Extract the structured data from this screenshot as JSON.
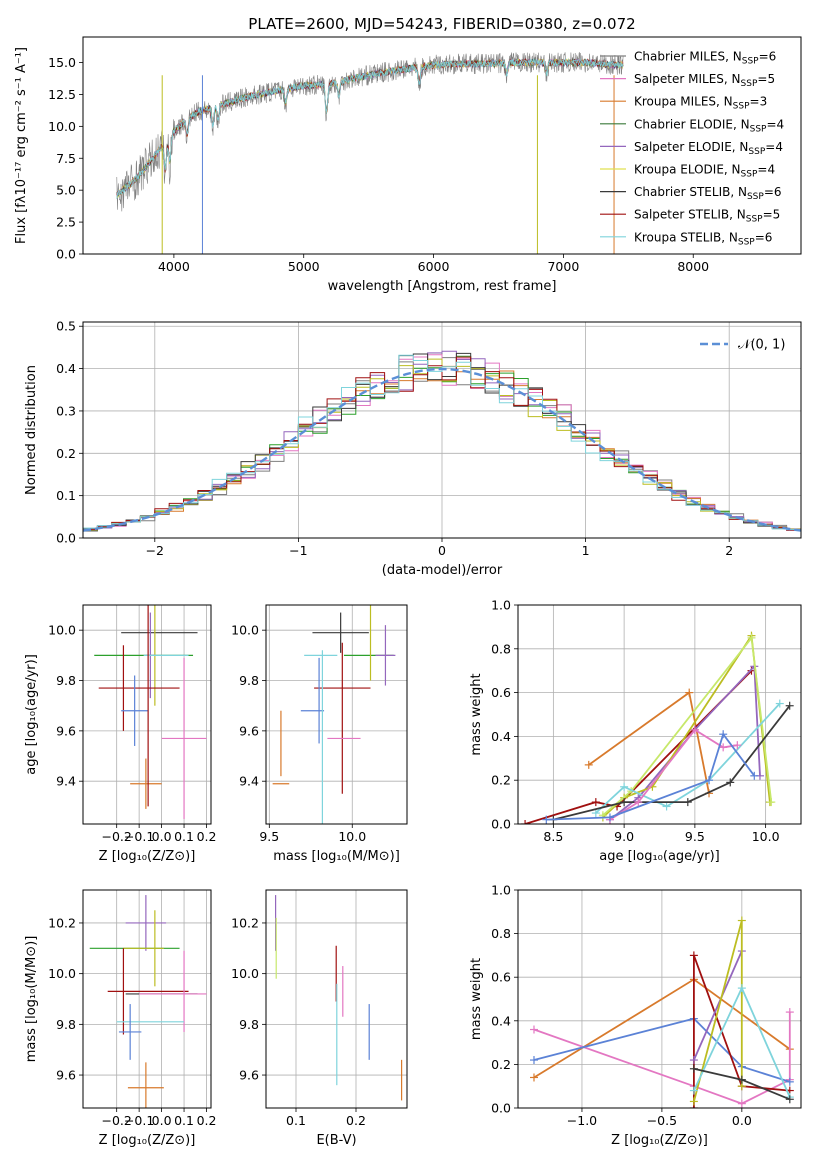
{
  "title": "PLATE=2600, MJD=54243, FIBERID=0380, z=0.072",
  "colors": {
    "Chabrier MILES": "#7f7f7f",
    "Salpeter MILES": "#e377c2",
    "Kroupa MILES": "#d62728",
    "Chabrier ELODIE": "#2ca02c",
    "Salpeter ELODIE": "#9467bd",
    "Kroupa ELODIE": "#bcbd22",
    "Chabrier STELIB": "#3a3a3a",
    "Salpeter STELIB": "#a01010",
    "Kroupa STELIB": "#7fd4dc"
  },
  "chart_data": [
    {
      "id": "spectrum",
      "type": "line",
      "title": "PLATE=2600, MJD=54243, FIBERID=0380, z=0.072",
      "xlabel": "wavelength [Angstrom, rest frame]",
      "ylabel": "Flux [fλ10⁻¹⁷ erg cm⁻² s⁻¹ A⁻¹]",
      "xlim": [
        3300,
        8830
      ],
      "ylim": [
        0,
        17
      ],
      "xticks": [
        "4000",
        "5000",
        "6000",
        "7000",
        "8000"
      ],
      "yticks": [
        "0.0",
        "2.5",
        "5.0",
        "7.5",
        "10.0",
        "12.5",
        "15.0"
      ],
      "legend_position": "right",
      "legend": [
        {
          "label": "Chabrier MILES, N",
          "sub": "SSP",
          "suffix": "=6",
          "color": "#7f7f7f"
        },
        {
          "label": "Salpeter MILES, N",
          "sub": "SSP",
          "suffix": "=5",
          "color": "#e377c2"
        },
        {
          "label": "Kroupa MILES, N",
          "sub": "SSP",
          "suffix": "=3",
          "color": "#d87a2c"
        },
        {
          "label": "Chabrier ELODIE, N",
          "sub": "SSP",
          "suffix": "=4",
          "color": "#3a7a3a"
        },
        {
          "label": "Salpeter ELODIE, N",
          "sub": "SSP",
          "suffix": "=4",
          "color": "#9467bd"
        },
        {
          "label": "Kroupa ELODIE, N",
          "sub": "SSP",
          "suffix": "=4",
          "color": "#e0e050"
        },
        {
          "label": "Chabrier STELIB, N",
          "sub": "SSP",
          "suffix": "=6",
          "color": "#3a3a3a"
        },
        {
          "label": "Salpeter STELIB, N",
          "sub": "SSP",
          "suffix": "=5",
          "color": "#a01010"
        },
        {
          "label": "Kroupa STELIB, N",
          "sub": "SSP",
          "suffix": "=6",
          "color": "#7fd4dc"
        }
      ],
      "continuum": {
        "x": [
          3560,
          3700,
          3800,
          3900,
          4000,
          4100,
          4200,
          4400,
          4600,
          4800,
          5000,
          5200,
          5400,
          5600,
          5800,
          6000,
          6200,
          6400,
          6600,
          6800,
          7000,
          7200,
          7400
        ],
        "y": [
          4.6,
          5.8,
          7.0,
          8.3,
          9.6,
          10.6,
          11.2,
          11.8,
          12.4,
          12.8,
          13.2,
          13.3,
          13.8,
          14.2,
          14.5,
          14.8,
          14.9,
          14.9,
          15.0,
          15.0,
          15.0,
          15.0,
          14.8
        ]
      }
    },
    {
      "id": "residuals",
      "type": "histogram",
      "xlabel": "(data-model)/error",
      "ylabel": "Normed distribution",
      "xlim": [
        -2.5,
        2.5
      ],
      "ylim": [
        0,
        0.51
      ],
      "xticks": [
        "−2",
        "−1",
        "0",
        "1",
        "2"
      ],
      "yticks": [
        "0.0",
        "0.1",
        "0.2",
        "0.3",
        "0.4",
        "0.5"
      ],
      "grid": true,
      "legend_position": "top-right",
      "legend_label": "𝒩(0, 1)",
      "bin_width": 0.1
    },
    {
      "id": "age-vs-Z",
      "type": "scatter",
      "xlabel": "Z [log₁₀(Z/Z⊙)]",
      "ylabel": "age  [log₁₀(age/yr)]",
      "xlim": [
        -0.35,
        0.22
      ],
      "ylim": [
        9.23,
        10.1
      ],
      "xticks": [
        "−0.2",
        "−0.1",
        "0.0",
        "0.1",
        "0.2"
      ],
      "yticks": [
        "9.4",
        "9.6",
        "9.8",
        "10.0"
      ],
      "grid": true,
      "points": [
        {
          "x": -0.01,
          "y": 9.99,
          "xerr": 0.17,
          "yerr": 0.0,
          "color": "#3a3a3a"
        },
        {
          "x": -0.08,
          "y": 9.9,
          "xerr": 0.22,
          "yerr": 0.0,
          "color": "#2ca02c"
        },
        {
          "x": -0.05,
          "y": 9.9,
          "xerr": 0.02,
          "yerr": 0.17,
          "color": "#9467bd"
        },
        {
          "x": -0.03,
          "y": 9.9,
          "xerr": 0.0,
          "yerr": 0.2,
          "color": "#bcbd22"
        },
        {
          "x": 0.02,
          "y": 9.9,
          "xerr": 0.1,
          "yerr": 0.0,
          "color": "#7fd4dc"
        },
        {
          "x": -0.1,
          "y": 9.77,
          "xerr": 0.18,
          "yerr": 0.0,
          "color": "#a01010"
        },
        {
          "x": -0.17,
          "y": 9.77,
          "xerr": 0.0,
          "yerr": 0.17,
          "color": "#a01010"
        },
        {
          "x": -0.12,
          "y": 9.68,
          "xerr": 0.06,
          "yerr": 0.14,
          "color": "#5b82d6"
        },
        {
          "x": 0.1,
          "y": 9.57,
          "xerr": 0.1,
          "yerr": 0.32,
          "color": "#e377c2"
        },
        {
          "x": -0.07,
          "y": 9.39,
          "xerr": 0.07,
          "yerr": 0.1,
          "color": "#d87a2c"
        },
        {
          "x": -0.06,
          "y": 9.7,
          "xerr": 0.0,
          "yerr": 0.4,
          "color": "#a01010"
        }
      ]
    },
    {
      "id": "age-vs-mass",
      "type": "scatter",
      "xlabel": "mass [log₁₀(M/M⊙)]",
      "ylabel": "",
      "xlim": [
        9.48,
        10.33
      ],
      "ylim": [
        9.23,
        10.1
      ],
      "xticks": [
        "9.5",
        "10.0"
      ],
      "yticks": [
        "9.4",
        "9.6",
        "9.8",
        "10.0"
      ],
      "grid": true,
      "points": [
        {
          "x": 9.93,
          "y": 9.99,
          "xerr": 0.17,
          "yerr": 0.0,
          "color": "#3a3a3a"
        },
        {
          "x": 9.93,
          "y": 9.99,
          "xerr": 0.0,
          "yerr": 0.08,
          "color": "#3a3a3a"
        },
        {
          "x": 10.1,
          "y": 9.9,
          "xerr": 0.15,
          "yerr": 0.0,
          "color": "#2ca02c"
        },
        {
          "x": 10.2,
          "y": 9.9,
          "xerr": 0.06,
          "yerr": 0.12,
          "color": "#9467bd"
        },
        {
          "x": 10.11,
          "y": 9.95,
          "xerr": 0.0,
          "yerr": 0.15,
          "color": "#bcbd22"
        },
        {
          "x": 9.81,
          "y": 9.9,
          "xerr": 0.1,
          "yerr": 0.0,
          "color": "#7fd4dc"
        },
        {
          "x": 9.94,
          "y": 9.77,
          "xerr": 0.17,
          "yerr": 0.0,
          "color": "#a01010"
        },
        {
          "x": 9.94,
          "y": 9.65,
          "xerr": 0.0,
          "yerr": 0.3,
          "color": "#a01010"
        },
        {
          "x": 9.76,
          "y": 9.68,
          "xerr": 0.07,
          "yerr": 0.0,
          "color": "#5b82d6"
        },
        {
          "x": 9.8,
          "y": 9.72,
          "xerr": 0.0,
          "yerr": 0.17,
          "color": "#5b82d6"
        },
        {
          "x": 9.95,
          "y": 9.57,
          "xerr": 0.1,
          "yerr": 0.0,
          "color": "#e377c2"
        },
        {
          "x": 9.82,
          "y": 9.55,
          "xerr": 0.0,
          "yerr": 0.37,
          "color": "#7fd4dc"
        },
        {
          "x": 9.57,
          "y": 9.39,
          "xerr": 0.05,
          "yerr": 0.0,
          "color": "#d87a2c"
        },
        {
          "x": 9.57,
          "y": 9.55,
          "xerr": 0.0,
          "yerr": 0.13,
          "color": "#d87a2c"
        }
      ]
    },
    {
      "id": "massweight-vs-age",
      "type": "line",
      "xlabel": "age  [log₁₀(age/yr)]",
      "ylabel": "mass weight",
      "xlim": [
        8.25,
        10.25
      ],
      "ylim": [
        0,
        1.0
      ],
      "xticks": [
        "8.5",
        "9.0",
        "9.5",
        "10.0"
      ],
      "yticks": [
        "0.0",
        "0.2",
        "0.4",
        "0.6",
        "0.8",
        "1.0"
      ],
      "grid": true,
      "series": [
        {
          "color": "#d87a2c",
          "x": [
            8.75,
            9.46,
            9.6
          ],
          "y": [
            0.27,
            0.6,
            0.14
          ]
        },
        {
          "color": "#a01010",
          "x": [
            8.3,
            8.8,
            8.95,
            9.9
          ],
          "y": [
            0.0,
            0.1,
            0.08,
            0.7
          ]
        },
        {
          "color": "#9467bd",
          "x": [
            8.9,
            9.1,
            9.5,
            9.92,
            9.96
          ],
          "y": [
            0.02,
            0.12,
            0.43,
            0.72,
            0.22
          ]
        },
        {
          "color": "#bcbd22",
          "x": [
            8.85,
            9.0,
            9.2,
            9.9,
            10.03
          ],
          "y": [
            0.03,
            0.12,
            0.17,
            0.86,
            0.1
          ]
        },
        {
          "color": "#c7e86a",
          "x": [
            8.85,
            9.05,
            9.9,
            10.04
          ],
          "y": [
            0.04,
            0.15,
            0.85,
            0.1
          ]
        },
        {
          "color": "#7fd4dc",
          "x": [
            8.8,
            9.0,
            9.3,
            9.6,
            10.1
          ],
          "y": [
            0.05,
            0.17,
            0.08,
            0.2,
            0.55
          ]
        },
        {
          "color": "#3a3a3a",
          "x": [
            8.5,
            9.0,
            9.45,
            9.75,
            10.17
          ],
          "y": [
            0.02,
            0.1,
            0.1,
            0.19,
            0.54
          ]
        },
        {
          "color": "#e377c2",
          "x": [
            8.9,
            9.1,
            9.5,
            9.7,
            9.8
          ],
          "y": [
            0.02,
            0.1,
            0.43,
            0.35,
            0.36
          ]
        },
        {
          "color": "#5b82d6",
          "x": [
            8.45,
            8.9,
            9.6,
            9.7,
            9.92
          ],
          "y": [
            0.02,
            0.03,
            0.2,
            0.41,
            0.22
          ]
        }
      ]
    },
    {
      "id": "mass-vs-Z",
      "type": "scatter",
      "xlabel": "Z [log₁₀(Z/Z⊙)]",
      "ylabel": "mass [log₁₀(M/M⊙)]",
      "xlim": [
        -0.35,
        0.22
      ],
      "ylim": [
        9.47,
        10.33
      ],
      "xticks": [
        "−0.2",
        "−0.1",
        "0.0",
        "0.1",
        "0.2"
      ],
      "yticks": [
        "9.6",
        "9.8",
        "10.0",
        "10.2"
      ],
      "grid": true,
      "points": [
        {
          "x": -0.07,
          "y": 10.2,
          "xerr": 0.09,
          "yerr": 0.11,
          "color": "#9467bd"
        },
        {
          "x": -0.12,
          "y": 10.1,
          "xerr": 0.2,
          "yerr": 0.0,
          "color": "#2ca02c"
        },
        {
          "x": -0.08,
          "y": 10.1,
          "xerr": 0.09,
          "yerr": 0.0,
          "color": "#bcbd22"
        },
        {
          "x": -0.03,
          "y": 10.1,
          "xerr": 0.0,
          "yerr": 0.15,
          "color": "#bcbd22"
        },
        {
          "x": -0.06,
          "y": 9.93,
          "xerr": 0.18,
          "yerr": 0.0,
          "color": "#a01010"
        },
        {
          "x": -0.17,
          "y": 9.93,
          "xerr": 0.0,
          "yerr": 0.17,
          "color": "#a01010"
        },
        {
          "x": 0.0,
          "y": 9.92,
          "xerr": 0.16,
          "yerr": 0.0,
          "color": "#3a3a3a"
        },
        {
          "x": 0.1,
          "y": 9.93,
          "xerr": 0.0,
          "yerr": 0.16,
          "color": "#e377c2"
        },
        {
          "x": 0.05,
          "y": 9.92,
          "xerr": 0.15,
          "yerr": 0.0,
          "color": "#e377c2"
        },
        {
          "x": -0.05,
          "y": 9.81,
          "xerr": 0.15,
          "yerr": 0.0,
          "color": "#7fd4dc"
        },
        {
          "x": -0.14,
          "y": 9.77,
          "xerr": 0.05,
          "yerr": 0.11,
          "color": "#5b82d6"
        },
        {
          "x": -0.07,
          "y": 9.55,
          "xerr": 0.08,
          "yerr": 0.1,
          "color": "#d87a2c"
        }
      ]
    },
    {
      "id": "mass-vs-EBV",
      "type": "scatter",
      "xlabel": "E(B-V)",
      "ylabel": "",
      "xlim": [
        0.05,
        0.285
      ],
      "ylim": [
        9.47,
        10.33
      ],
      "xticks": [
        "0.1",
        "0.2"
      ],
      "yticks": [
        "9.6",
        "9.8",
        "10.0",
        "10.2"
      ],
      "grid": true,
      "points": [
        {
          "x": 0.066,
          "y": 10.2,
          "xerr": 0.0,
          "yerr": 0.11,
          "color": "#9467bd"
        },
        {
          "x": 0.067,
          "y": 10.1,
          "xerr": 0.0,
          "yerr": 0.12,
          "color": "#c7e86a"
        },
        {
          "x": 0.167,
          "y": 10.0,
          "xerr": 0.0,
          "yerr": 0.11,
          "color": "#a01010"
        },
        {
          "x": 0.168,
          "y": 9.76,
          "xerr": 0.0,
          "yerr": 0.2,
          "color": "#7fd4dc"
        },
        {
          "x": 0.178,
          "y": 9.93,
          "xerr": 0.0,
          "yerr": 0.1,
          "color": "#e377c2"
        },
        {
          "x": 0.222,
          "y": 9.77,
          "xerr": 0.0,
          "yerr": 0.11,
          "color": "#5b82d6"
        },
        {
          "x": 0.276,
          "y": 9.58,
          "xerr": 0.0,
          "yerr": 0.08,
          "color": "#d87a2c"
        }
      ]
    },
    {
      "id": "massweight-vs-Z",
      "type": "line",
      "xlabel": "Z [log₁₀(Z/Z⊙)]",
      "ylabel": "mass weight",
      "xlim": [
        -1.4,
        0.37
      ],
      "ylim": [
        0,
        1.0
      ],
      "xticks": [
        "−1.0",
        "−0.5",
        "0.0"
      ],
      "yticks": [
        "0.0",
        "0.2",
        "0.4",
        "0.6",
        "0.8",
        "1.0"
      ],
      "grid": true,
      "series": [
        {
          "color": "#d87a2c",
          "x": [
            -1.3,
            -0.3,
            0.3
          ],
          "y": [
            0.14,
            0.59,
            0.27
          ]
        },
        {
          "color": "#e377c2",
          "x": [
            -1.3,
            -0.3,
            0.0,
            0.3,
            0.3
          ],
          "y": [
            0.36,
            0.1,
            0.02,
            0.13,
            0.44
          ]
        },
        {
          "color": "#5b82d6",
          "x": [
            -1.3,
            -0.3,
            0.0,
            0.3
          ],
          "y": [
            0.22,
            0.41,
            0.19,
            0.12
          ]
        },
        {
          "color": "#a01010",
          "x": [
            -0.3,
            -0.3,
            0.0,
            0.3
          ],
          "y": [
            0.0,
            0.7,
            0.1,
            0.08
          ]
        },
        {
          "color": "#9467bd",
          "x": [
            -0.3,
            0.0
          ],
          "y": [
            0.22,
            0.72
          ]
        },
        {
          "color": "#bcbd22",
          "x": [
            -0.3,
            0.0,
            0.0
          ],
          "y": [
            0.03,
            0.86,
            0.1
          ]
        },
        {
          "color": "#7fd4dc",
          "x": [
            -0.3,
            0.0,
            0.3
          ],
          "y": [
            0.08,
            0.55,
            0.05
          ]
        },
        {
          "color": "#3a3a3a",
          "x": [
            -0.3,
            0.0,
            0.3
          ],
          "y": [
            0.18,
            0.13,
            0.04
          ]
        }
      ]
    }
  ]
}
